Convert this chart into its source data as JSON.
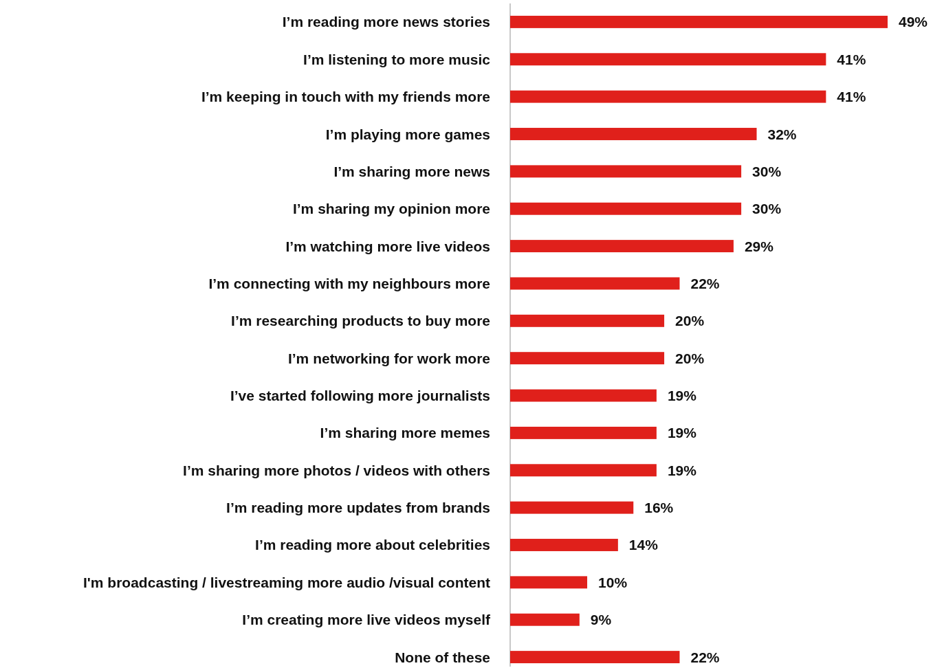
{
  "chart_data": {
    "type": "bar",
    "orientation": "horizontal",
    "color": "#e0201b",
    "categories": [
      "I’m reading more news stories",
      "I’m listening to more music",
      "I’m keeping in touch with my friends more",
      "I’m playing more games",
      "I’m sharing more news",
      "I’m sharing my opinion more",
      "I’m watching more live videos",
      "I’m connecting with my neighbours more",
      "I’m researching products to buy more",
      "I’m networking for work more",
      "I’ve started following more journalists",
      "I’m sharing more memes",
      "I’m sharing more photos / videos with others",
      "I’m reading more updates from brands",
      "I’m reading more about celebrities",
      "I'm broadcasting / livestreaming more audio /visual content",
      "I’m creating more live videos myself",
      "None of these"
    ],
    "values": [
      49,
      41,
      41,
      32,
      30,
      30,
      29,
      22,
      20,
      20,
      19,
      19,
      19,
      16,
      14,
      10,
      9,
      22
    ],
    "value_labels": [
      "49%",
      "41%",
      "41%",
      "32%",
      "30%",
      "30%",
      "29%",
      "22%",
      "20%",
      "20%",
      "19%",
      "19%",
      "19%",
      "16%",
      "14%",
      "10%",
      "9%",
      "22%"
    ]
  }
}
